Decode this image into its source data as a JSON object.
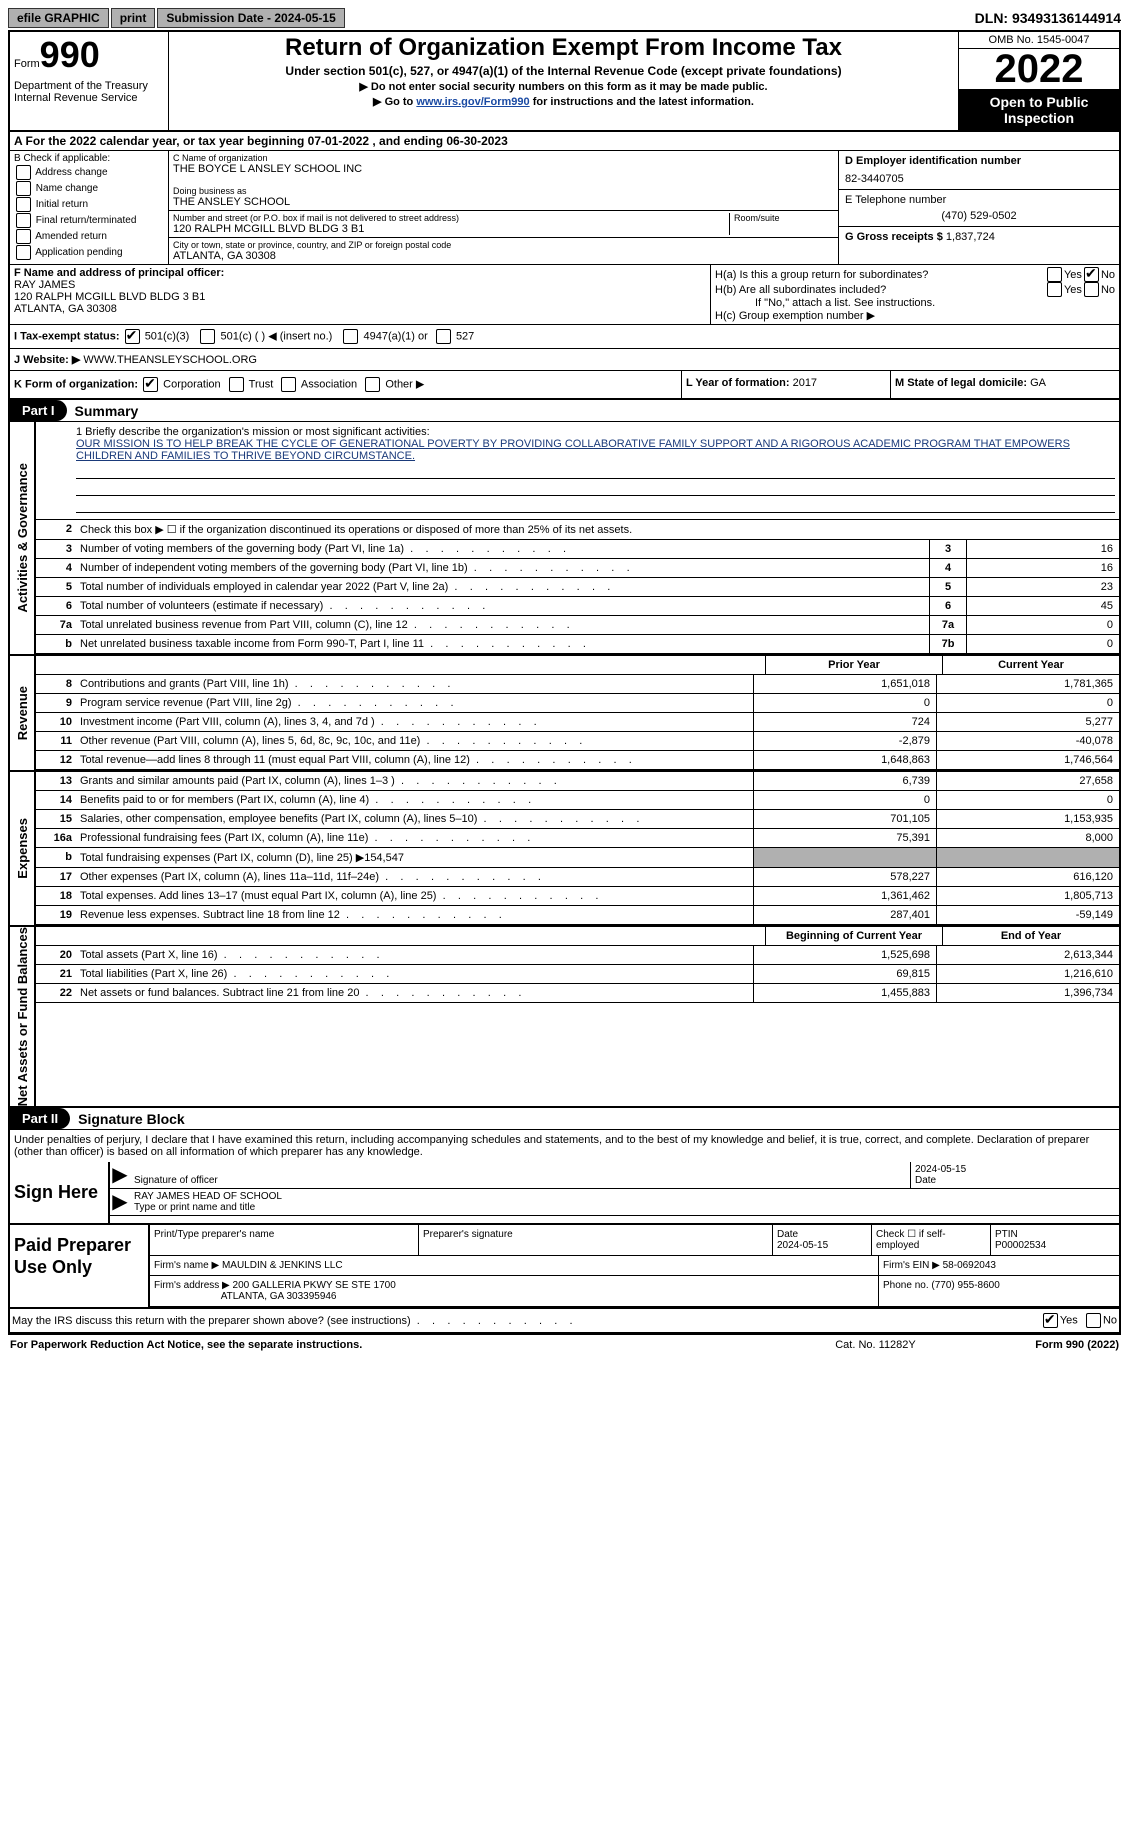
{
  "topbar": {
    "efile": "efile GRAPHIC",
    "print": "print",
    "submission": "Submission Date - 2024-05-15",
    "dln": "DLN: 93493136144914"
  },
  "header": {
    "form_label": "Form",
    "form_number": "990",
    "dept": "Department of the Treasury\nInternal Revenue Service",
    "title": "Return of Organization Exempt From Income Tax",
    "sub1": "Under section 501(c), 527, or 4947(a)(1) of the Internal Revenue Code (except private foundations)",
    "sub2": "▶ Do not enter social security numbers on this form as it may be made public.",
    "sub3_pre": "▶ Go to ",
    "sub3_link": "www.irs.gov/Form990",
    "sub3_post": " for instructions and the latest information.",
    "omb": "OMB No. 1545-0047",
    "year": "2022",
    "open": "Open to Public Inspection"
  },
  "rowA": "A For the 2022 calendar year, or tax year beginning 07-01-2022    , and ending 06-30-2023",
  "colB": {
    "label": "B Check if applicable:",
    "items": [
      "Address change",
      "Name change",
      "Initial return",
      "Final return/terminated",
      "Amended return",
      "Application pending"
    ]
  },
  "colC": {
    "name_label": "C Name of organization",
    "name": "THE BOYCE L ANSLEY SCHOOL INC",
    "dba_label": "Doing business as",
    "dba": "THE ANSLEY SCHOOL",
    "street_label": "Number and street (or P.O. box if mail is not delivered to street address)",
    "street": "120 RALPH MCGILL BLVD BLDG 3 B1",
    "room_label": "Room/suite",
    "city_label": "City or town, state or province, country, and ZIP or foreign postal code",
    "city": "ATLANTA, GA  30308"
  },
  "colD": {
    "ein_label": "D Employer identification number",
    "ein": "82-3440705",
    "phone_label": "E Telephone number",
    "phone": "(470) 529-0502",
    "gross_label": "G Gross receipts $",
    "gross": "1,837,724"
  },
  "colF": {
    "label": "F  Name and address of principal officer:",
    "name": "RAY JAMES",
    "addr1": "120 RALPH MCGILL BLVD BLDG 3 B1",
    "addr2": "ATLANTA, GA  30308"
  },
  "colH": {
    "a": "H(a)  Is this a group return for subordinates?",
    "b": "H(b)  Are all subordinates included?",
    "b_note": "If \"No,\" attach a list. See instructions.",
    "c": "H(c)  Group exemption number ▶",
    "yes": "Yes",
    "no": "No"
  },
  "rowI": {
    "label": "I    Tax-exempt status:",
    "opts": [
      "501(c)(3)",
      "501(c) (  ) ◀ (insert no.)",
      "4947(a)(1) or",
      "527"
    ]
  },
  "rowJ": {
    "label": "J    Website: ▶",
    "value": "  WWW.THEANSLEYSCHOOL.ORG"
  },
  "rowK": {
    "k": "K Form of organization:",
    "opts": [
      "Corporation",
      "Trust",
      "Association",
      "Other ▶"
    ],
    "l_label": "L Year of formation:",
    "l_val": "2017",
    "m_label": "M State of legal domicile:",
    "m_val": "GA"
  },
  "part1": {
    "label": "Part I",
    "title": "Summary"
  },
  "side_labels": {
    "gov": "Activities & Governance",
    "rev": "Revenue",
    "exp": "Expenses",
    "net": "Net Assets or Fund Balances"
  },
  "mission": {
    "label": "1  Briefly describe the organization's mission or most significant activities:",
    "text": "OUR MISSION IS TO HELP BREAK THE CYCLE OF GENERATIONAL POVERTY BY PROVIDING COLLABORATIVE FAMILY SUPPORT AND A RIGOROUS ACADEMIC PROGRAM THAT EMPOWERS CHILDREN AND FAMILIES TO THRIVE BEYOND CIRCUMSTANCE."
  },
  "gov_rows": [
    {
      "n": "2",
      "d": "Check this box ▶ ☐ if the organization discontinued its operations or disposed of more than 25% of its net assets.",
      "box": "",
      "val": ""
    },
    {
      "n": "3",
      "d": "Number of voting members of the governing body (Part VI, line 1a)",
      "box": "3",
      "val": "16"
    },
    {
      "n": "4",
      "d": "Number of independent voting members of the governing body (Part VI, line 1b)",
      "box": "4",
      "val": "16"
    },
    {
      "n": "5",
      "d": "Total number of individuals employed in calendar year 2022 (Part V, line 2a)",
      "box": "5",
      "val": "23"
    },
    {
      "n": "6",
      "d": "Total number of volunteers (estimate if necessary)",
      "box": "6",
      "val": "45"
    },
    {
      "n": "7a",
      "d": "Total unrelated business revenue from Part VIII, column (C), line 12",
      "box": "7a",
      "val": "0"
    },
    {
      "n": "b",
      "d": "Net unrelated business taxable income from Form 990-T, Part I, line 11",
      "box": "7b",
      "val": "0"
    }
  ],
  "col_hdrs": {
    "prior": "Prior Year",
    "current": "Current Year",
    "begin": "Beginning of Current Year",
    "end": "End of Year"
  },
  "rev_rows": [
    {
      "n": "8",
      "d": "Contributions and grants (Part VIII, line 1h)",
      "p": "1,651,018",
      "c": "1,781,365"
    },
    {
      "n": "9",
      "d": "Program service revenue (Part VIII, line 2g)",
      "p": "0",
      "c": "0"
    },
    {
      "n": "10",
      "d": "Investment income (Part VIII, column (A), lines 3, 4, and 7d )",
      "p": "724",
      "c": "5,277"
    },
    {
      "n": "11",
      "d": "Other revenue (Part VIII, column (A), lines 5, 6d, 8c, 9c, 10c, and 11e)",
      "p": "-2,879",
      "c": "-40,078"
    },
    {
      "n": "12",
      "d": "Total revenue—add lines 8 through 11 (must equal Part VIII, column (A), line 12)",
      "p": "1,648,863",
      "c": "1,746,564"
    }
  ],
  "exp_rows": [
    {
      "n": "13",
      "d": "Grants and similar amounts paid (Part IX, column (A), lines 1–3 )",
      "p": "6,739",
      "c": "27,658"
    },
    {
      "n": "14",
      "d": "Benefits paid to or for members (Part IX, column (A), line 4)",
      "p": "0",
      "c": "0"
    },
    {
      "n": "15",
      "d": "Salaries, other compensation, employee benefits (Part IX, column (A), lines 5–10)",
      "p": "701,105",
      "c": "1,153,935"
    },
    {
      "n": "16a",
      "d": "Professional fundraising fees (Part IX, column (A), line 11e)",
      "p": "75,391",
      "c": "8,000"
    },
    {
      "n": "b",
      "d": "Total fundraising expenses (Part IX, column (D), line 25) ▶154,547",
      "p": "shade",
      "c": "shade"
    },
    {
      "n": "17",
      "d": "Other expenses (Part IX, column (A), lines 11a–11d, 11f–24e)",
      "p": "578,227",
      "c": "616,120"
    },
    {
      "n": "18",
      "d": "Total expenses. Add lines 13–17 (must equal Part IX, column (A), line 25)",
      "p": "1,361,462",
      "c": "1,805,713"
    },
    {
      "n": "19",
      "d": "Revenue less expenses. Subtract line 18 from line 12",
      "p": "287,401",
      "c": "-59,149"
    }
  ],
  "net_rows": [
    {
      "n": "20",
      "d": "Total assets (Part X, line 16)",
      "p": "1,525,698",
      "c": "2,613,344"
    },
    {
      "n": "21",
      "d": "Total liabilities (Part X, line 26)",
      "p": "69,815",
      "c": "1,216,610"
    },
    {
      "n": "22",
      "d": "Net assets or fund balances. Subtract line 21 from line 20",
      "p": "1,455,883",
      "c": "1,396,734"
    }
  ],
  "part2": {
    "label": "Part II",
    "title": "Signature Block"
  },
  "sig": {
    "decl": "Under penalties of perjury, I declare that I have examined this return, including accompanying schedules and statements, and to the best of my knowledge and belief, it is true, correct, and complete. Declaration of preparer (other than officer) is based on all information of which preparer has any knowledge.",
    "side": "Sign Here",
    "sig_officer": "Signature of officer",
    "date": "2024-05-15",
    "date_label": "Date",
    "name": "RAY JAMES  HEAD OF SCHOOL",
    "name_label": "Type or print name and title"
  },
  "prep": {
    "side": "Paid Preparer Use Only",
    "print_label": "Print/Type preparer's name",
    "sig_label": "Preparer's signature",
    "date_label": "Date",
    "date": "2024-05-15",
    "check_label": "Check ☐ if self-employed",
    "ptin_label": "PTIN",
    "ptin": "P00002534",
    "firm_name_label": "Firm's name    ▶",
    "firm_name": "MAULDIN & JENKINS LLC",
    "firm_ein_label": "Firm's EIN ▶",
    "firm_ein": "58-0692043",
    "firm_addr_label": "Firm's address ▶",
    "firm_addr1": "200 GALLERIA PKWY SE STE 1700",
    "firm_addr2": "ATLANTA, GA  303395946",
    "phone_label": "Phone no.",
    "phone": "(770) 955-8600"
  },
  "discuss": {
    "text": "May the IRS discuss this return with the preparer shown above? (see instructions)",
    "yes": "Yes",
    "no": "No"
  },
  "footer": {
    "left": "For Paperwork Reduction Act Notice, see the separate instructions.",
    "center": "Cat. No. 11282Y",
    "right": "Form 990 (2022)"
  }
}
